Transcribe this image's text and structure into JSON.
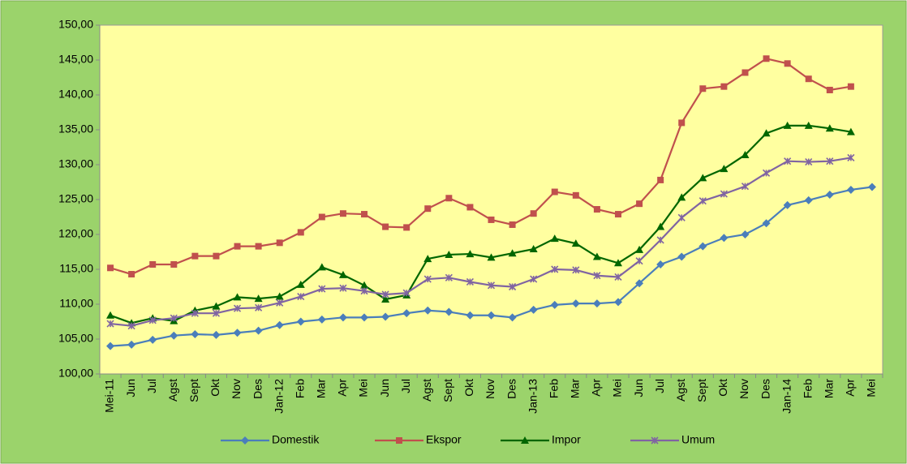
{
  "chart_data": {
    "type": "line",
    "categories": [
      "Mei-11",
      "Jun",
      "Jul",
      "Agst",
      "Sept",
      "Okt",
      "Nov",
      "Des",
      "Jan-12",
      "Feb",
      "Mar",
      "Apr",
      "Mei",
      "Jun",
      "Jul",
      "Agst",
      "Sept",
      "Okt",
      "Nov",
      "Des",
      "Jan-13",
      "Feb",
      "Mar",
      "Apr",
      "Mei",
      "Jun",
      "Jul",
      "Agst",
      "Sept",
      "Okt",
      "Nov",
      "Des",
      "Jan-14",
      "Feb",
      "Mar",
      "Apr",
      "Mei"
    ],
    "series": [
      {
        "name": "Domestik",
        "color": "#4a7ebb",
        "marker": "diamond",
        "values": [
          104.0,
          104.2,
          104.9,
          105.5,
          105.7,
          105.6,
          105.9,
          106.2,
          107.0,
          107.5,
          107.8,
          108.1,
          108.1,
          108.2,
          108.7,
          109.1,
          108.9,
          108.4,
          108.4,
          108.1,
          109.2,
          109.9,
          110.1,
          110.1,
          110.3,
          113.0,
          115.7,
          116.8,
          118.3,
          119.5,
          120.0,
          121.6,
          124.2,
          124.9,
          125.7,
          126.4,
          126.8
        ]
      },
      {
        "name": "Ekspor",
        "color": "#c0504d",
        "marker": "square",
        "values": [
          115.2,
          114.3,
          115.7,
          115.7,
          116.9,
          116.9,
          118.3,
          118.3,
          118.8,
          120.3,
          122.5,
          123.0,
          122.9,
          121.1,
          121.0,
          123.7,
          125.2,
          123.9,
          122.1,
          121.4,
          123.0,
          126.1,
          125.6,
          123.6,
          122.9,
          124.4,
          127.8,
          136.0,
          140.9,
          141.2,
          143.2,
          145.2,
          144.5,
          142.3,
          140.7,
          141.2,
          null
        ]
      },
      {
        "name": "Impor",
        "color": "#006600",
        "marker": "triangle",
        "values": [
          108.4,
          107.3,
          108.0,
          107.6,
          109.1,
          109.7,
          111.0,
          110.8,
          111.1,
          112.8,
          115.3,
          114.2,
          112.7,
          110.7,
          111.3,
          116.5,
          117.1,
          117.2,
          116.7,
          117.3,
          117.9,
          119.4,
          118.7,
          116.8,
          115.9,
          117.8,
          121.1,
          125.3,
          128.1,
          129.4,
          131.4,
          134.5,
          135.6,
          135.6,
          135.2,
          134.7,
          null
        ]
      },
      {
        "name": "Umum",
        "color": "#8064a2",
        "marker": "star",
        "values": [
          107.2,
          106.9,
          107.7,
          108.0,
          108.7,
          108.7,
          109.4,
          109.5,
          110.2,
          111.1,
          112.2,
          112.3,
          111.9,
          111.4,
          111.6,
          113.6,
          113.8,
          113.2,
          112.7,
          112.5,
          113.6,
          115.0,
          114.9,
          114.1,
          113.9,
          116.2,
          119.2,
          122.4,
          124.8,
          125.8,
          126.9,
          128.8,
          130.5,
          130.4,
          130.5,
          131.0,
          null
        ]
      }
    ],
    "ylim": [
      100,
      150
    ],
    "yticks": [
      {
        "value": 100,
        "label": "100,00"
      },
      {
        "value": 105,
        "label": "105,00"
      },
      {
        "value": 110,
        "label": "110,00"
      },
      {
        "value": 115,
        "label": "115,00"
      },
      {
        "value": 120,
        "label": "120,00"
      },
      {
        "value": 125,
        "label": "125,00"
      },
      {
        "value": 130,
        "label": "130,00"
      },
      {
        "value": 135,
        "label": "135,00"
      },
      {
        "value": 140,
        "label": "140,00"
      },
      {
        "value": 145,
        "label": "145,00"
      },
      {
        "value": 150,
        "label": "150,00"
      }
    ],
    "grid": false,
    "legend": "bottom"
  }
}
